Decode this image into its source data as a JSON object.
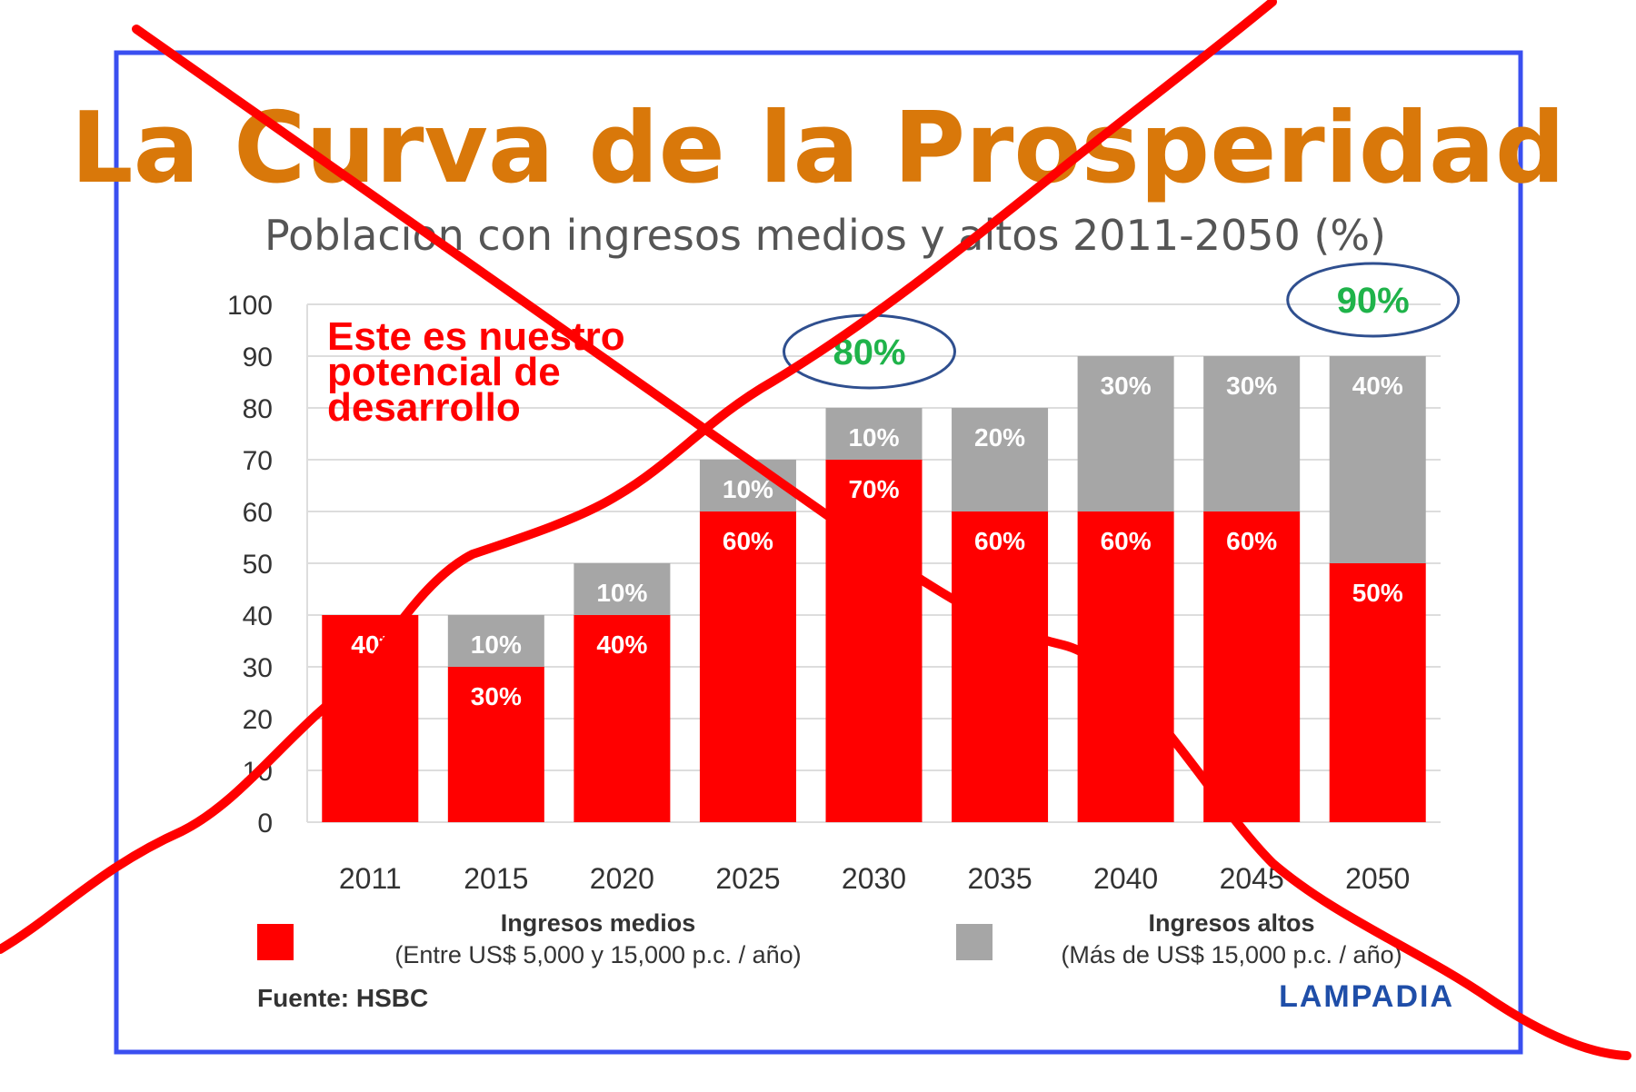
{
  "colors": {
    "frame": "#3a4ff0",
    "title": "#d9780a",
    "subtitle": "#555555",
    "medios": "#ff0000",
    "altos": "#a6a6a6",
    "callout_text": "#ff0000",
    "bubble_text": "#1fb34a",
    "bubble_border": "#2f4f8f",
    "cross": "#ff0000",
    "brand": "#1f4ea8",
    "grid": "#dddddd",
    "axis_text": "#333333"
  },
  "chart_data": {
    "type": "bar",
    "stacked": true,
    "title": "La Curva de la Prosperidad",
    "subtitle": "Poblacion con ingresos medios y altos 2011-2050 (%)",
    "categories": [
      "2011",
      "2015",
      "2020",
      "2025",
      "2030",
      "2035",
      "2040",
      "2045",
      "2050"
    ],
    "yticks": [
      "0",
      "10",
      "20",
      "30",
      "40",
      "50",
      "60",
      "70",
      "80",
      "90",
      "100"
    ],
    "ylim": [
      0,
      100
    ],
    "grid": true,
    "series": [
      {
        "name": "Ingresos medios",
        "values": [
          40,
          30,
          40,
          60,
          70,
          60,
          60,
          60,
          50
        ],
        "labels": [
          "40*",
          "30%",
          "40%",
          "60%",
          "70%",
          "60%",
          "60%",
          "60%",
          "50%"
        ]
      },
      {
        "name": "Ingresos altos",
        "values": [
          0,
          10,
          10,
          10,
          10,
          20,
          30,
          30,
          40
        ],
        "labels": [
          "",
          "10%",
          "10%",
          "10%",
          "10%",
          "20%",
          "30%",
          "30%",
          "40%"
        ]
      }
    ],
    "callout": {
      "lines": [
        "Este es nuestro",
        "potencial de",
        "desarrollo"
      ]
    },
    "bubbles": [
      {
        "category": "2030",
        "text": "80%"
      },
      {
        "category": "2050",
        "text": "90%"
      }
    ],
    "legend": {
      "placement": "bottom",
      "items": [
        {
          "title": "Ingresos medios",
          "desc": "(Entre US$ 5,000 y 15,000 p.c. / año)"
        },
        {
          "title": "Ingresos altos",
          "desc": "(Más de US$ 15,000 p.c. / año)"
        }
      ]
    },
    "source": "Fuente: HSBC",
    "brand": "LAMPADIA"
  }
}
